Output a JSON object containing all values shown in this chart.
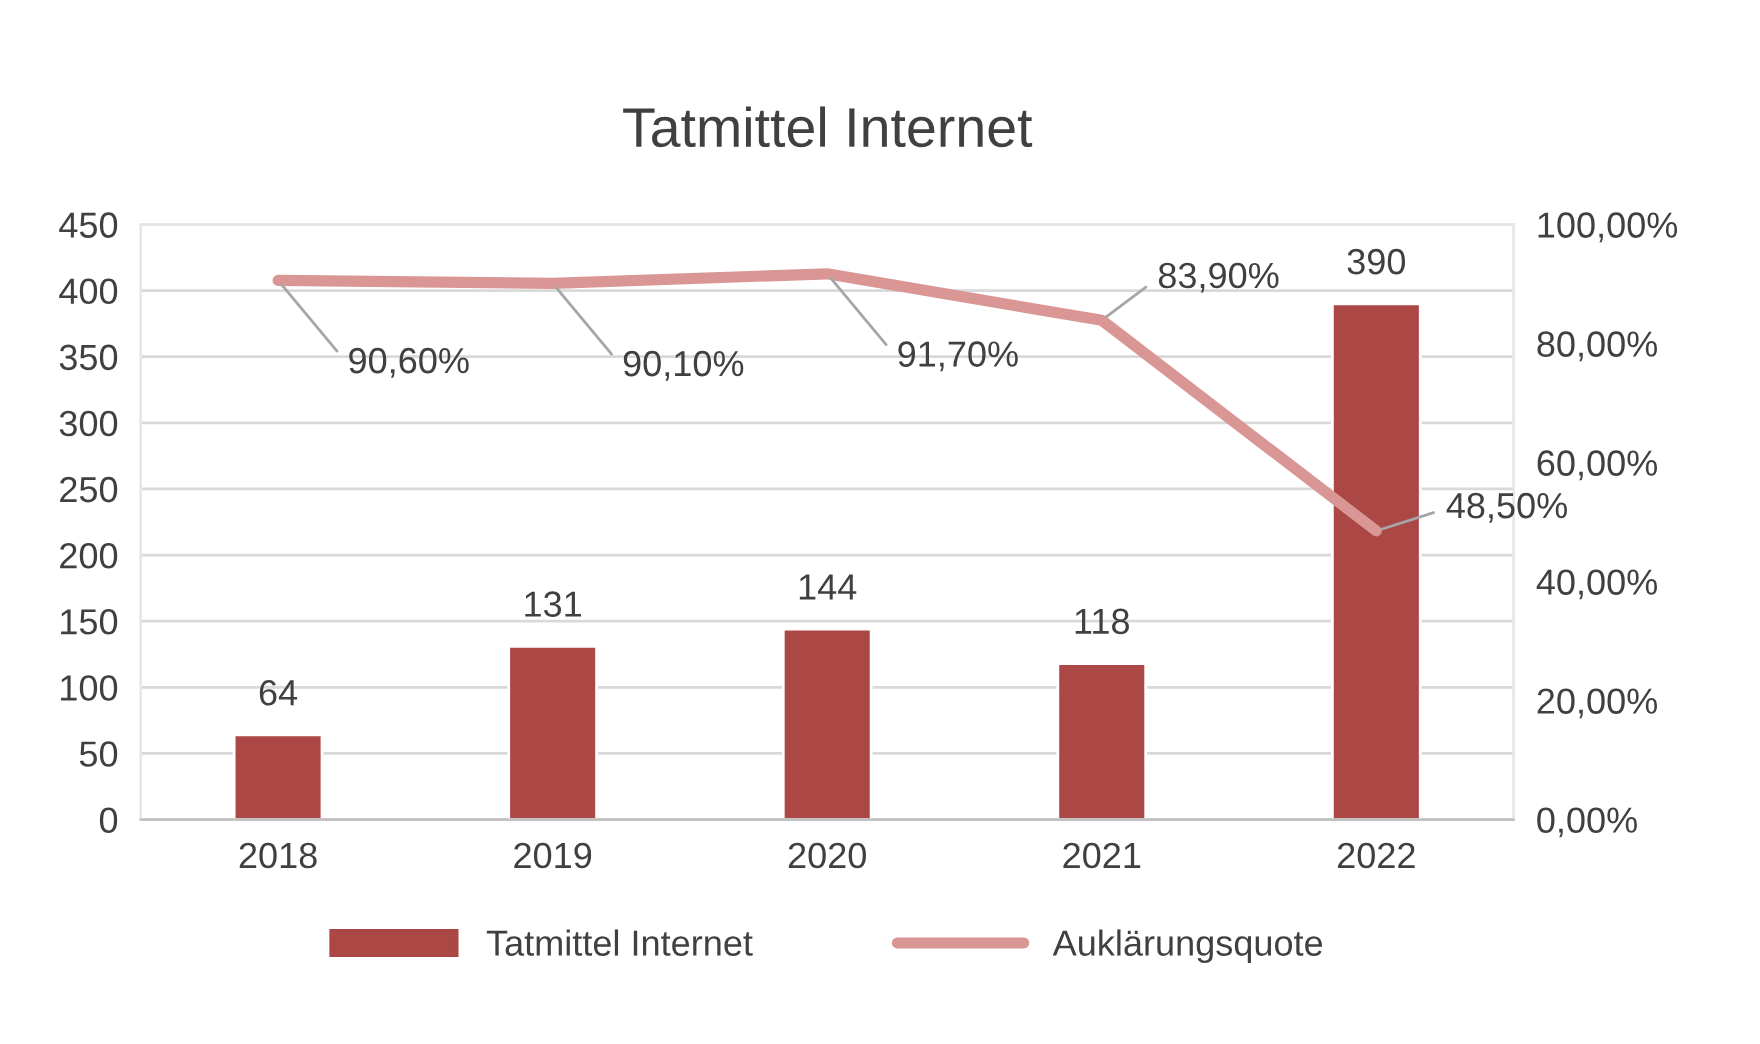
{
  "chart_data": {
    "type": "bar",
    "title": "Tatmittel Internet",
    "categories": [
      "2018",
      "2019",
      "2020",
      "2021",
      "2022"
    ],
    "series": [
      {
        "name": "Tatmittel Internet",
        "color": "#ab4744",
        "values": [
          64,
          131,
          144,
          118,
          390
        ],
        "value_labels": [
          "64",
          "131",
          "144",
          "118",
          "390"
        ]
      },
      {
        "name": "Auklärungsquote",
        "type": "line",
        "axis": "y2",
        "color": "#d99694",
        "values": [
          90.6,
          90.1,
          91.7,
          83.9,
          48.5
        ],
        "value_labels": [
          "90,60%",
          "90,10%",
          "91,70%",
          "83,90%",
          "48,50%"
        ]
      }
    ],
    "ylim": [
      0,
      450
    ],
    "yticks": [
      0,
      50,
      100,
      150,
      200,
      250,
      300,
      350,
      400,
      450
    ],
    "y2lim": [
      0,
      100
    ],
    "y2ticks": [
      {
        "value": 0,
        "label": "0,00%"
      },
      {
        "value": 20,
        "label": "20,00%"
      },
      {
        "value": 40,
        "label": "40,00%"
      },
      {
        "value": 60,
        "label": "60,00%"
      },
      {
        "value": 80,
        "label": "80,00%"
      },
      {
        "value": 100,
        "label": "100,00%"
      }
    ],
    "grid": "y",
    "legend": "bottom",
    "marker": "none",
    "line_style": "solid"
  }
}
